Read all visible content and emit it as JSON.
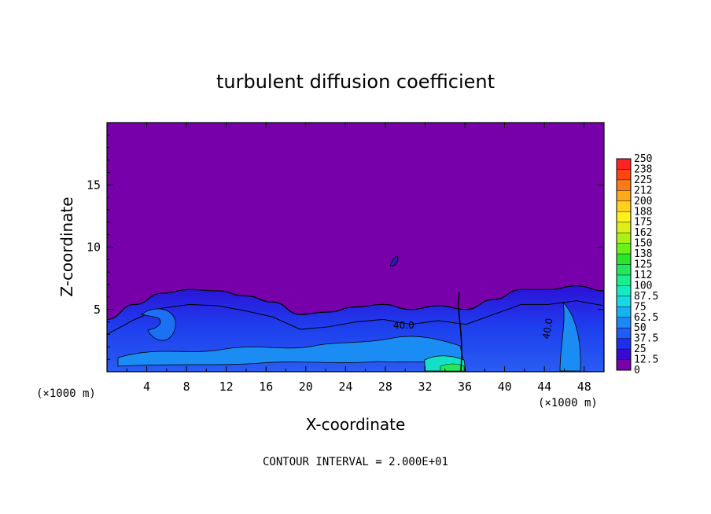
{
  "chart_data": {
    "type": "heatmap",
    "title": "turbulent diffusion coefficient",
    "xlabel": "X-coordinate",
    "ylabel": "Z-coordinate",
    "x_unit": "(×1000 m)",
    "xlim": [
      0,
      50
    ],
    "ylim": [
      0,
      20
    ],
    "x_ticks": [
      4,
      8,
      12,
      16,
      20,
      24,
      28,
      32,
      36,
      40,
      44,
      48
    ],
    "y_ticks": [
      5,
      10,
      15
    ],
    "colorbar": {
      "levels": [
        0,
        12.5,
        25,
        37.5,
        50,
        62.5,
        75,
        87.5,
        100,
        112,
        125,
        138,
        150,
        162,
        175,
        188,
        200,
        212,
        225,
        238,
        250
      ],
      "labels": [
        "0",
        "12.5",
        "25",
        "37.5",
        "50",
        "62.5",
        "75",
        "87.5",
        "100",
        "112",
        "125",
        "138",
        "150",
        "162",
        "175",
        "188",
        "200",
        "212",
        "225",
        "238",
        "250"
      ],
      "colors": [
        "#7700aa",
        "#3a0ad2",
        "#1e2eee",
        "#1e5cf6",
        "#1c88f6",
        "#18b2f2",
        "#16d8e6",
        "#12ecc0",
        "#18f090",
        "#22e860",
        "#2ae62a",
        "#6cf01a",
        "#a8f218",
        "#dcf018",
        "#fff020",
        "#ffd01c",
        "#ffaa18",
        "#ff7a14",
        "#ff4412",
        "#ff2424",
        "#f08a8a"
      ]
    },
    "background_color": "#7700aa",
    "turbulent_layer_top_z": [
      4.2,
      5.4,
      6.3,
      6.6,
      6.5,
      6.1,
      5.6,
      4.6,
      4.8,
      5.2,
      5.4,
      5.0,
      5.3,
      5.0,
      5.8,
      6.6,
      6.6,
      6.9,
      6.5
    ],
    "contour_interval_text": "CONTOUR INTERVAL = 2.000E+01",
    "contour_labels": [
      "40.0",
      "40.0"
    ]
  }
}
